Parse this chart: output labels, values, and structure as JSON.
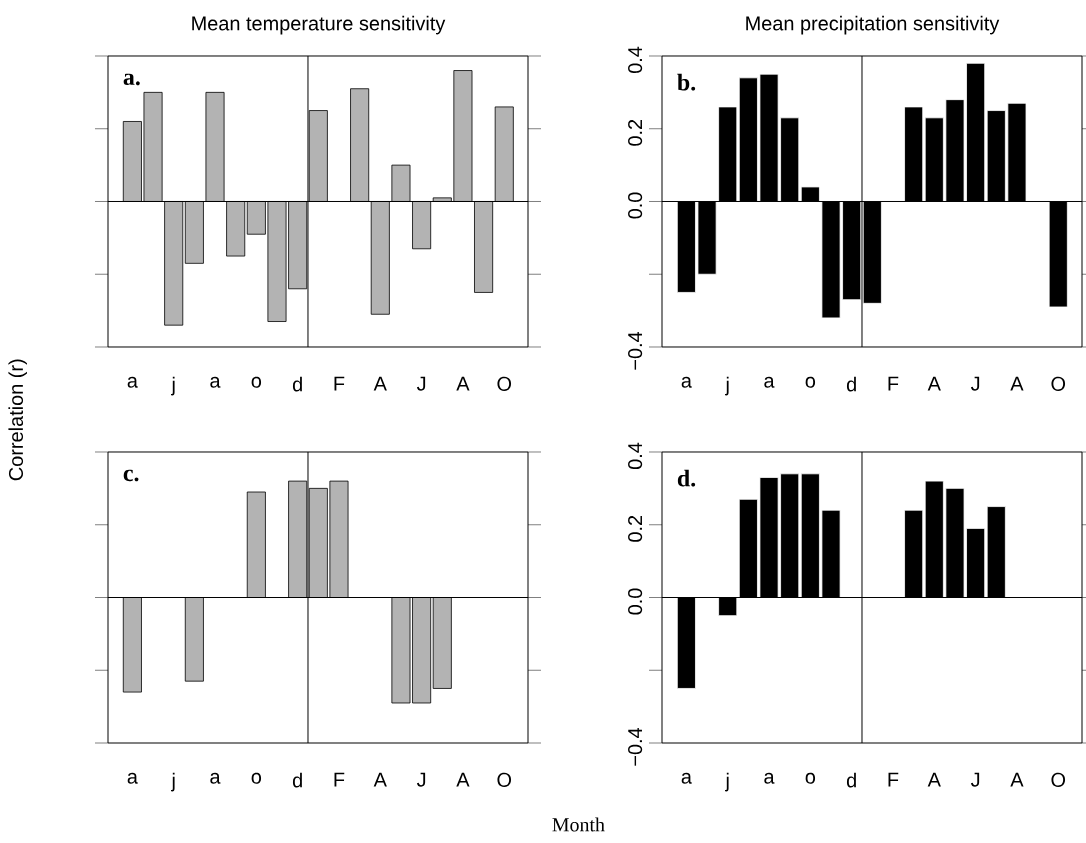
{
  "chart_data": [
    {
      "type": "bar",
      "title": "Mean temperature sensitivity",
      "ylabel": "Correlation (r)",
      "categories": [
        "a",
        null,
        "j",
        null,
        "a",
        null,
        "o",
        null,
        "d",
        null,
        "F",
        null,
        "A",
        null,
        "J",
        null,
        "A",
        null,
        "O"
      ],
      "values": [
        0.22,
        0.3,
        -0.34,
        -0.17,
        0.3,
        -0.15,
        -0.09,
        -0.33,
        -0.24,
        0.25,
        null,
        0.31,
        -0.31,
        0.1,
        -0.13,
        0.01,
        0.36,
        -0.25,
        0.26
      ],
      "color": "#b3b3b3",
      "ylim": [
        -0.4,
        0.4
      ],
      "yticks": [
        -0.4,
        -0.2,
        0.0,
        0.2,
        0.4
      ],
      "tick_labels": "x",
      "ref_lines": [
        {
          "axis": "y",
          "value": 0
        }
      ],
      "annotations": [
        "a."
      ]
    },
    {
      "type": "bar",
      "title": "Mean precipitation sensitivity",
      "categories": [
        "a",
        null,
        "j",
        null,
        "a",
        null,
        "o",
        null,
        "d",
        null,
        "F",
        null,
        "A",
        null,
        "J",
        null,
        "A",
        null,
        "O"
      ],
      "values": [
        -0.25,
        -0.2,
        0.26,
        0.34,
        0.35,
        0.23,
        0.04,
        -0.32,
        -0.27,
        -0.28,
        null,
        0.26,
        0.23,
        0.28,
        0.38,
        0.25,
        0.27,
        null,
        -0.29
      ],
      "color": "#000000",
      "ylim": [
        -0.4,
        0.4
      ],
      "yticks": [
        {
          "value": -0.4,
          "label": "−0.4"
        },
        {
          "value": -0.2,
          "label": null
        },
        {
          "value": 0.0,
          "label": "0.0"
        },
        {
          "value": 0.2,
          "label": "0.2"
        },
        {
          "value": 0.4,
          "label": "0.4"
        }
      ],
      "ref_lines": [
        {
          "axis": "y",
          "value": 0
        }
      ],
      "annotations": [
        "b."
      ]
    },
    {
      "type": "bar",
      "xlabel": "Month",
      "categories": [
        "a",
        null,
        "j",
        null,
        "a",
        null,
        "o",
        null,
        "d",
        null,
        "F",
        null,
        "A",
        null,
        "J",
        null,
        "A",
        null,
        "O"
      ],
      "values": [
        -0.26,
        null,
        null,
        -0.23,
        null,
        null,
        0.29,
        null,
        0.32,
        0.3,
        0.32,
        null,
        null,
        -0.29,
        -0.29,
        -0.25,
        null,
        null,
        null
      ],
      "color": "#b3b3b3",
      "ylim": [
        -0.4,
        0.4
      ],
      "yticks": [
        -0.4,
        -0.2,
        0.0,
        0.2,
        0.4
      ],
      "tick_labels": "x",
      "ref_lines": [
        {
          "axis": "y",
          "value": 0
        }
      ],
      "annotations": [
        "c."
      ]
    },
    {
      "type": "bar",
      "categories": [
        "a",
        null,
        "j",
        null,
        "a",
        null,
        "o",
        null,
        "d",
        null,
        "F",
        null,
        "A",
        null,
        "J",
        null,
        "A",
        null,
        "O"
      ],
      "values": [
        -0.25,
        null,
        -0.05,
        0.27,
        0.33,
        0.34,
        0.34,
        0.24,
        null,
        null,
        null,
        0.24,
        0.32,
        0.3,
        0.19,
        0.25,
        null,
        null,
        null
      ],
      "color": "#000000",
      "ylim": [
        -0.4,
        0.4
      ],
      "yticks": [
        {
          "value": -0.4,
          "label": "−0.4"
        },
        {
          "value": -0.2,
          "label": null
        },
        {
          "value": 0.0,
          "label": "0.0"
        },
        {
          "value": 0.2,
          "label": "0.2"
        },
        {
          "value": 0.4,
          "label": "0.4"
        }
      ],
      "ref_lines": [
        {
          "axis": "y",
          "value": 0
        }
      ],
      "annotations": [
        "d."
      ]
    }
  ]
}
